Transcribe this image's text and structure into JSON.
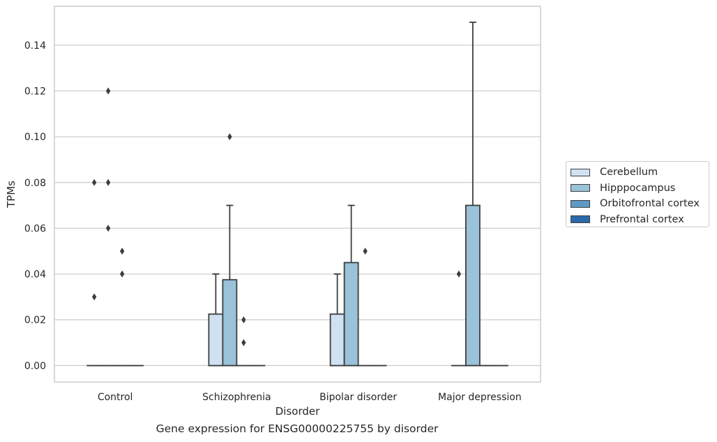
{
  "chart_data": {
    "type": "box",
    "title": "",
    "xlabel": "Disorder",
    "ylabel": "TPMs",
    "caption": "Gene expression for ENSG00000225755 by disorder",
    "ylim": [
      -0.0072,
      0.157
    ],
    "yticks": [
      "0.00",
      "0.02",
      "0.04",
      "0.06",
      "0.08",
      "0.10",
      "0.12",
      "0.14"
    ],
    "categories": [
      "Control",
      "Schizophrenia",
      "Bipolar disorder",
      "Major depression"
    ],
    "legend_position": "right",
    "grid": true,
    "series": [
      {
        "name": "Cerebellum",
        "color": "#d0e1f2",
        "boxes": [
          {
            "q1": 0,
            "median": 0,
            "q3": 0,
            "whisker_low": 0,
            "whisker_high": 0,
            "outliers": [
              0.03,
              0.08
            ]
          },
          {
            "q1": 0,
            "median": 0,
            "q3": 0.0225,
            "whisker_low": 0,
            "whisker_high": 0.04,
            "outliers": []
          },
          {
            "q1": 0,
            "median": 0,
            "q3": 0.0225,
            "whisker_low": 0,
            "whisker_high": 0.04,
            "outliers": []
          },
          {
            "q1": 0,
            "median": 0,
            "q3": 0,
            "whisker_low": 0,
            "whisker_high": 0,
            "outliers": [
              0.04
            ]
          }
        ]
      },
      {
        "name": "Hipppocampus",
        "color": "#9ac2d9",
        "boxes": [
          {
            "q1": 0,
            "median": 0,
            "q3": 0,
            "whisker_low": 0,
            "whisker_high": 0,
            "outliers": [
              0.06,
              0.08,
              0.12
            ]
          },
          {
            "q1": 0,
            "median": 0,
            "q3": 0.0375,
            "whisker_low": 0,
            "whisker_high": 0.07,
            "outliers": [
              0.1
            ]
          },
          {
            "q1": 0,
            "median": 0,
            "q3": 0.045,
            "whisker_low": 0,
            "whisker_high": 0.07,
            "outliers": []
          },
          {
            "q1": 0,
            "median": 0,
            "q3": 0.07,
            "whisker_low": 0,
            "whisker_high": 0.15,
            "outliers": []
          }
        ]
      },
      {
        "name": "Orbitofrontal cortex",
        "color": "#5e99c3",
        "boxes": [
          {
            "q1": 0,
            "median": 0,
            "q3": 0,
            "whisker_low": 0,
            "whisker_high": 0,
            "outliers": [
              0.04,
              0.05
            ]
          },
          {
            "q1": 0,
            "median": 0,
            "q3": 0,
            "whisker_low": 0,
            "whisker_high": 0,
            "outliers": [
              0.01,
              0.02
            ]
          },
          {
            "q1": 0,
            "median": 0,
            "q3": 0,
            "whisker_low": 0,
            "whisker_high": 0,
            "outliers": [
              0.05
            ]
          },
          {
            "q1": 0,
            "median": 0,
            "q3": 0,
            "whisker_low": 0,
            "whisker_high": 0,
            "outliers": []
          }
        ]
      },
      {
        "name": "Prefrontal cortex",
        "color": "#2a6aad",
        "boxes": [
          {
            "q1": 0,
            "median": 0,
            "q3": 0,
            "whisker_low": 0,
            "whisker_high": 0,
            "outliers": []
          },
          {
            "q1": 0,
            "median": 0,
            "q3": 0,
            "whisker_low": 0,
            "whisker_high": 0,
            "outliers": []
          },
          {
            "q1": 0,
            "median": 0,
            "q3": 0,
            "whisker_low": 0,
            "whisker_high": 0,
            "outliers": []
          },
          {
            "q1": 0,
            "median": 0,
            "q3": 0,
            "whisker_low": 0,
            "whisker_high": 0,
            "outliers": []
          }
        ]
      }
    ]
  }
}
